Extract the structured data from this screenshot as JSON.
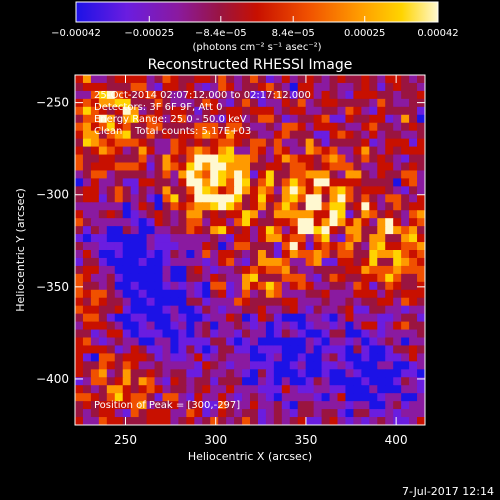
{
  "chart_data": {
    "type": "heatmap",
    "title": "Reconstructed RHESSI Image",
    "xlabel": "Heliocentric X (arcsec)",
    "ylabel": "Heliocentric Y (arcsec)",
    "xlim": [
      222,
      416
    ],
    "ylim": [
      -425,
      -235
    ],
    "xticks": [
      250,
      300,
      350,
      400
    ],
    "yticks": [
      -250,
      -300,
      -350,
      -400
    ],
    "colorbar": {
      "units": "(photons cm⁻² s⁻¹ asec⁻²)",
      "range": [
        -0.00042,
        0.00042
      ],
      "ticks": [
        {
          "value": -0.00042,
          "label": "−0.00042"
        },
        {
          "value": -0.00025,
          "label": "−0.00025"
        },
        {
          "value": -8.4e-05,
          "label": "−8.4e−05"
        },
        {
          "value": 8.4e-05,
          "label": "8.4e−05"
        },
        {
          "value": 0.00025,
          "label": "0.00025"
        },
        {
          "value": 0.00042,
          "label": "0.00042"
        }
      ],
      "colors": [
        "#1c12e6",
        "#6a1de0",
        "#8a1aa0",
        "#9a1440",
        "#c81000",
        "#f05000",
        "#ff9a00",
        "#ffd400",
        "#fff8d0"
      ]
    },
    "annotations": {
      "time_range": "25-Oct-2014 02:07:12.000 to 02:17:12.000",
      "detectors": "Detectors: 3F 6F 9F, Att 0",
      "energy": "Energy Range: 25.0 - 50.0 keV",
      "method": "Clean",
      "counts": "Total counts: 5.17E+03",
      "peak": "Position of Peak = [300,-297]"
    },
    "peak": {
      "x": 300,
      "y": -297
    }
  },
  "footer": {
    "date": "7-Jul-2017 12:14"
  }
}
